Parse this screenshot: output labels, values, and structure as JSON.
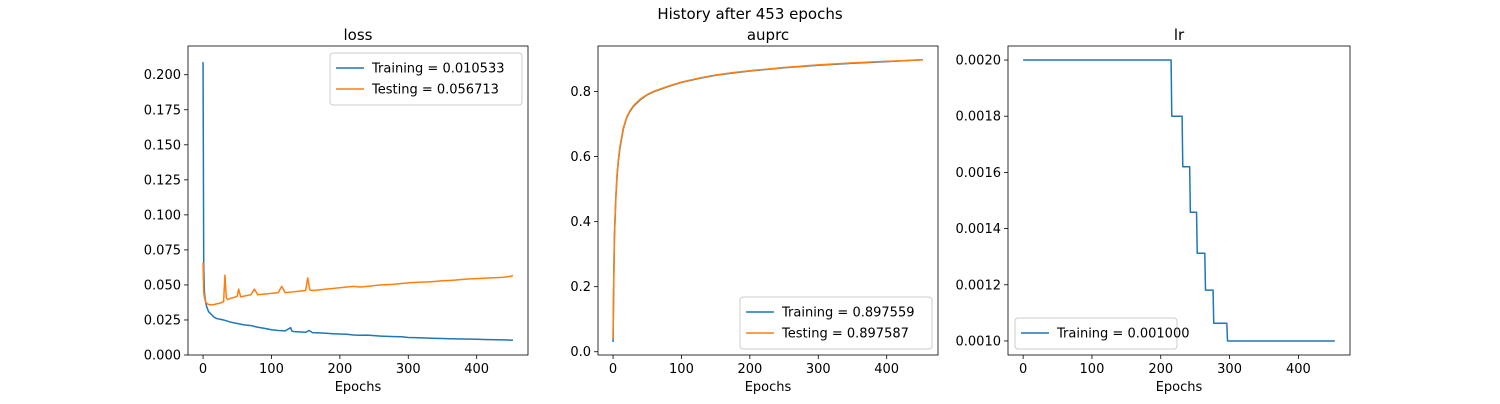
{
  "figure": {
    "suptitle": "History after 453 epochs",
    "colors": {
      "training": "#1f77b4",
      "testing": "#ff7f0e"
    }
  },
  "chart_data": [
    {
      "type": "line",
      "title": "loss",
      "xlabel": "Epochs",
      "ylabel": "",
      "xlim": [
        -22,
        475
      ],
      "ylim": [
        0.0,
        0.2205
      ],
      "xticks": [
        0,
        100,
        200,
        300,
        400
      ],
      "xtick_labels": [
        "0",
        "100",
        "200",
        "300",
        "400"
      ],
      "yticks": [
        0.0,
        0.025,
        0.05,
        0.075,
        0.1,
        0.125,
        0.15,
        0.175,
        0.2
      ],
      "ytick_labels": [
        "0.000",
        "0.025",
        "0.050",
        "0.075",
        "0.100",
        "0.125",
        "0.150",
        "0.175",
        "0.200"
      ],
      "legend_position": "top-right",
      "series": [
        {
          "name": "Training = 0.010533",
          "color": "#1f77b4",
          "x": [
            0,
            1,
            2,
            3,
            5,
            8,
            12,
            16,
            20,
            25,
            30,
            40,
            50,
            60,
            70,
            80,
            90,
            100,
            110,
            120,
            128,
            130,
            132,
            140,
            150,
            155,
            160,
            170,
            180,
            190,
            200,
            210,
            220,
            230,
            240,
            250,
            260,
            270,
            280,
            290,
            300,
            310,
            320,
            330,
            340,
            350,
            360,
            370,
            380,
            390,
            400,
            410,
            420,
            430,
            440,
            450,
            453
          ],
          "y": [
            0.209,
            0.062,
            0.045,
            0.04,
            0.035,
            0.031,
            0.029,
            0.027,
            0.026,
            0.0255,
            0.025,
            0.0235,
            0.0225,
            0.0215,
            0.021,
            0.0198,
            0.019,
            0.018,
            0.0175,
            0.0172,
            0.0195,
            0.017,
            0.0168,
            0.0165,
            0.0162,
            0.0175,
            0.016,
            0.0158,
            0.0155,
            0.0152,
            0.015,
            0.0148,
            0.0143,
            0.0141,
            0.0142,
            0.0138,
            0.0135,
            0.0133,
            0.0131,
            0.013,
            0.0125,
            0.0124,
            0.0122,
            0.012,
            0.0119,
            0.0118,
            0.0116,
            0.0115,
            0.0114,
            0.0113,
            0.0112,
            0.0111,
            0.011,
            0.0109,
            0.0108,
            0.0106,
            0.010533
          ]
        },
        {
          "name": "Testing = 0.056713",
          "color": "#ff7f0e",
          "x": [
            0,
            1,
            2,
            3,
            5,
            8,
            12,
            16,
            20,
            25,
            30,
            32,
            34,
            36,
            40,
            45,
            50,
            52,
            55,
            60,
            70,
            75,
            80,
            90,
            100,
            110,
            115,
            120,
            130,
            140,
            150,
            153,
            156,
            160,
            170,
            180,
            190,
            200,
            210,
            220,
            230,
            240,
            250,
            260,
            270,
            280,
            290,
            300,
            310,
            320,
            330,
            340,
            350,
            360,
            370,
            380,
            390,
            400,
            410,
            420,
            430,
            440,
            450,
            453
          ],
          "y": [
            0.066,
            0.045,
            0.041,
            0.039,
            0.037,
            0.036,
            0.0358,
            0.036,
            0.0365,
            0.037,
            0.038,
            0.057,
            0.041,
            0.0395,
            0.0405,
            0.041,
            0.042,
            0.047,
            0.0415,
            0.042,
            0.043,
            0.047,
            0.043,
            0.0435,
            0.044,
            0.0445,
            0.049,
            0.0445,
            0.045,
            0.0455,
            0.046,
            0.055,
            0.0465,
            0.046,
            0.0465,
            0.047,
            0.0475,
            0.048,
            0.0485,
            0.049,
            0.0485,
            0.049,
            0.0495,
            0.05,
            0.0502,
            0.0505,
            0.051,
            0.0515,
            0.0518,
            0.052,
            0.0522,
            0.0525,
            0.053,
            0.0532,
            0.0535,
            0.054,
            0.0543,
            0.0545,
            0.0548,
            0.055,
            0.0552,
            0.0555,
            0.0562,
            0.056713
          ]
        }
      ]
    },
    {
      "type": "line",
      "title": "auprc",
      "xlabel": "Epochs",
      "ylabel": "",
      "xlim": [
        -22,
        475
      ],
      "ylim": [
        -0.01,
        0.94
      ],
      "xticks": [
        0,
        100,
        200,
        300,
        400
      ],
      "xtick_labels": [
        "0",
        "100",
        "200",
        "300",
        "400"
      ],
      "yticks": [
        0.0,
        0.2,
        0.4,
        0.6,
        0.8
      ],
      "ytick_labels": [
        "0.0",
        "0.2",
        "0.4",
        "0.6",
        "0.8"
      ],
      "legend_position": "bottom-right",
      "series": [
        {
          "name": "Training = 0.897559",
          "color": "#1f77b4",
          "x": [
            0,
            1,
            2,
            4,
            6,
            8,
            10,
            15,
            20,
            25,
            30,
            40,
            50,
            60,
            80,
            100,
            125,
            150,
            175,
            200,
            250,
            300,
            350,
            400,
            453
          ],
          "y": [
            0.03,
            0.21,
            0.35,
            0.47,
            0.545,
            0.59,
            0.625,
            0.685,
            0.72,
            0.74,
            0.755,
            0.775,
            0.79,
            0.8,
            0.815,
            0.828,
            0.84,
            0.85,
            0.857,
            0.863,
            0.873,
            0.881,
            0.887,
            0.892,
            0.897559
          ]
        },
        {
          "name": "Testing = 0.897587",
          "color": "#ff7f0e",
          "x": [
            0,
            1,
            2,
            4,
            6,
            8,
            10,
            15,
            20,
            25,
            30,
            40,
            50,
            60,
            80,
            100,
            125,
            150,
            175,
            200,
            250,
            300,
            350,
            400,
            453
          ],
          "y": [
            0.04,
            0.22,
            0.36,
            0.475,
            0.55,
            0.595,
            0.63,
            0.688,
            0.722,
            0.742,
            0.757,
            0.777,
            0.791,
            0.801,
            0.816,
            0.829,
            0.841,
            0.851,
            0.858,
            0.864,
            0.874,
            0.882,
            0.888,
            0.893,
            0.897587
          ]
        }
      ]
    },
    {
      "type": "line",
      "title": "lr",
      "xlabel": "Epochs",
      "ylabel": "",
      "xlim": [
        -22,
        475
      ],
      "ylim": [
        0.00095,
        0.00205
      ],
      "xticks": [
        0,
        100,
        200,
        300,
        400
      ],
      "xtick_labels": [
        "0",
        "100",
        "200",
        "300",
        "400"
      ],
      "yticks": [
        0.001,
        0.0012,
        0.0014,
        0.0016,
        0.0018,
        0.002
      ],
      "ytick_labels": [
        "0.0010",
        "0.0012",
        "0.0014",
        "0.0016",
        "0.0018",
        "0.0020"
      ],
      "legend_position": "bottom-left",
      "series": [
        {
          "name": "Training = 0.001000",
          "color": "#1f77b4",
          "x": [
            0,
            215,
            216,
            231,
            232,
            242,
            243,
            252,
            253,
            264,
            265,
            276,
            277,
            286,
            287,
            296,
            297,
            453
          ],
          "y": [
            0.002,
            0.002,
            0.0018,
            0.0018,
            0.00162,
            0.00162,
            0.001458,
            0.001458,
            0.001312,
            0.001312,
            0.001181,
            0.001181,
            0.001063,
            0.001063,
            0.001063,
            0.001063,
            0.001,
            0.001
          ]
        }
      ]
    }
  ]
}
